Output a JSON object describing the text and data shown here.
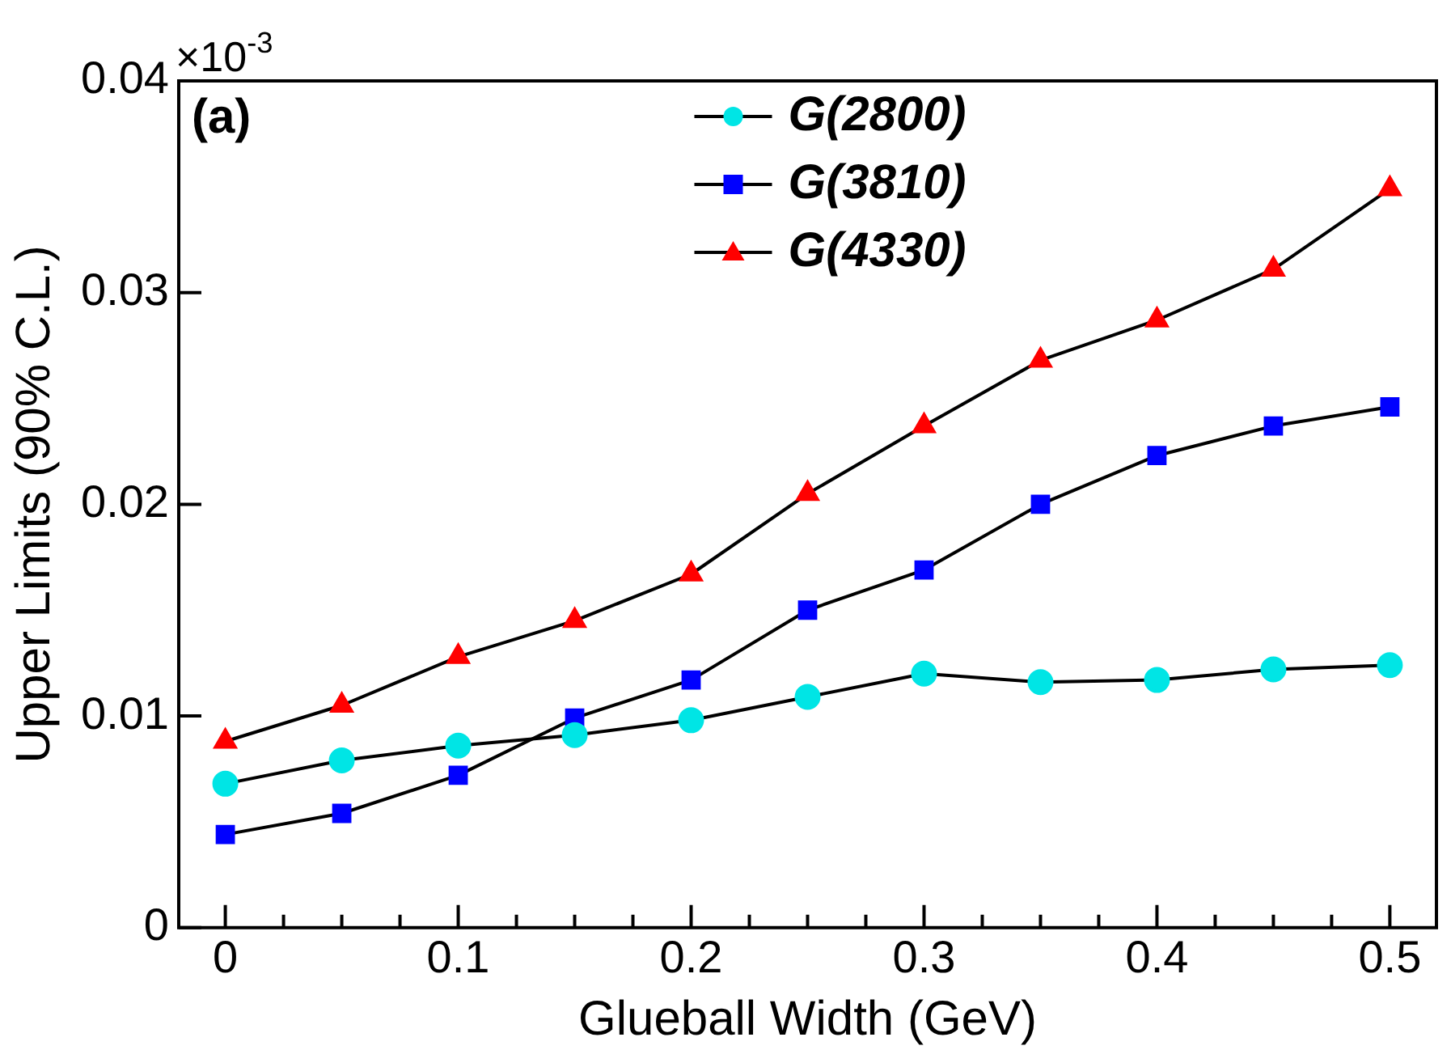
{
  "chart_data": {
    "type": "line",
    "xlabel": "Glueball Width (GeV)",
    "ylabel": "Upper Limits (90% C.L.)",
    "annotations": [
      "(a)",
      "×10$^{-3}$"
    ],
    "x": [
      0,
      0.05,
      0.1,
      0.15,
      0.2,
      0.25,
      0.3,
      0.35,
      0.4,
      0.45,
      0.5
    ],
    "series": [
      {
        "name": "G(2800)",
        "color": "#00e5e5",
        "marker": "circle",
        "values": [
          0.0068,
          0.0079,
          0.0086,
          0.0091,
          0.0098,
          0.0109,
          0.012,
          0.0116,
          0.0117,
          0.0122,
          0.0124
        ]
      },
      {
        "name": "G(3810)",
        "color": "#0000ff",
        "marker": "square",
        "values": [
          0.0044,
          0.0054,
          0.0072,
          0.0099,
          0.0117,
          0.015,
          0.0169,
          0.02,
          0.0223,
          0.0237,
          0.0246
        ]
      },
      {
        "name": "G(4330)",
        "color": "#ff0000",
        "marker": "triangle",
        "values": [
          0.0088,
          0.0105,
          0.0128,
          0.0145,
          0.0167,
          0.0205,
          0.0237,
          0.0268,
          0.0287,
          0.0311,
          0.0349
        ]
      }
    ],
    "xlim": [
      -0.02,
      0.52
    ],
    "xticks": [
      0,
      {
        "value": 0.025,
        "label": null
      },
      {
        "value": 0.05,
        "label": null
      },
      {
        "value": 0.075,
        "label": null
      },
      0.1,
      {
        "value": 0.125,
        "label": null
      },
      {
        "value": 0.15,
        "label": null
      },
      {
        "value": 0.175,
        "label": null
      },
      0.2,
      {
        "value": 0.225,
        "label": null
      },
      {
        "value": 0.25,
        "label": null
      },
      {
        "value": 0.275,
        "label": null
      },
      0.3,
      {
        "value": 0.325,
        "label": null
      },
      {
        "value": 0.35,
        "label": null
      },
      {
        "value": 0.375,
        "label": null
      },
      0.4,
      {
        "value": 0.425,
        "label": null
      },
      {
        "value": 0.45,
        "label": null
      },
      {
        "value": 0.475,
        "label": null
      },
      0.5
    ],
    "ylim": [
      0,
      0.04
    ],
    "yticks": [
      0,
      0.01,
      0.02,
      0.03,
      0.04
    ],
    "legend": "top",
    "grid": false,
    "line_style": "solid"
  }
}
